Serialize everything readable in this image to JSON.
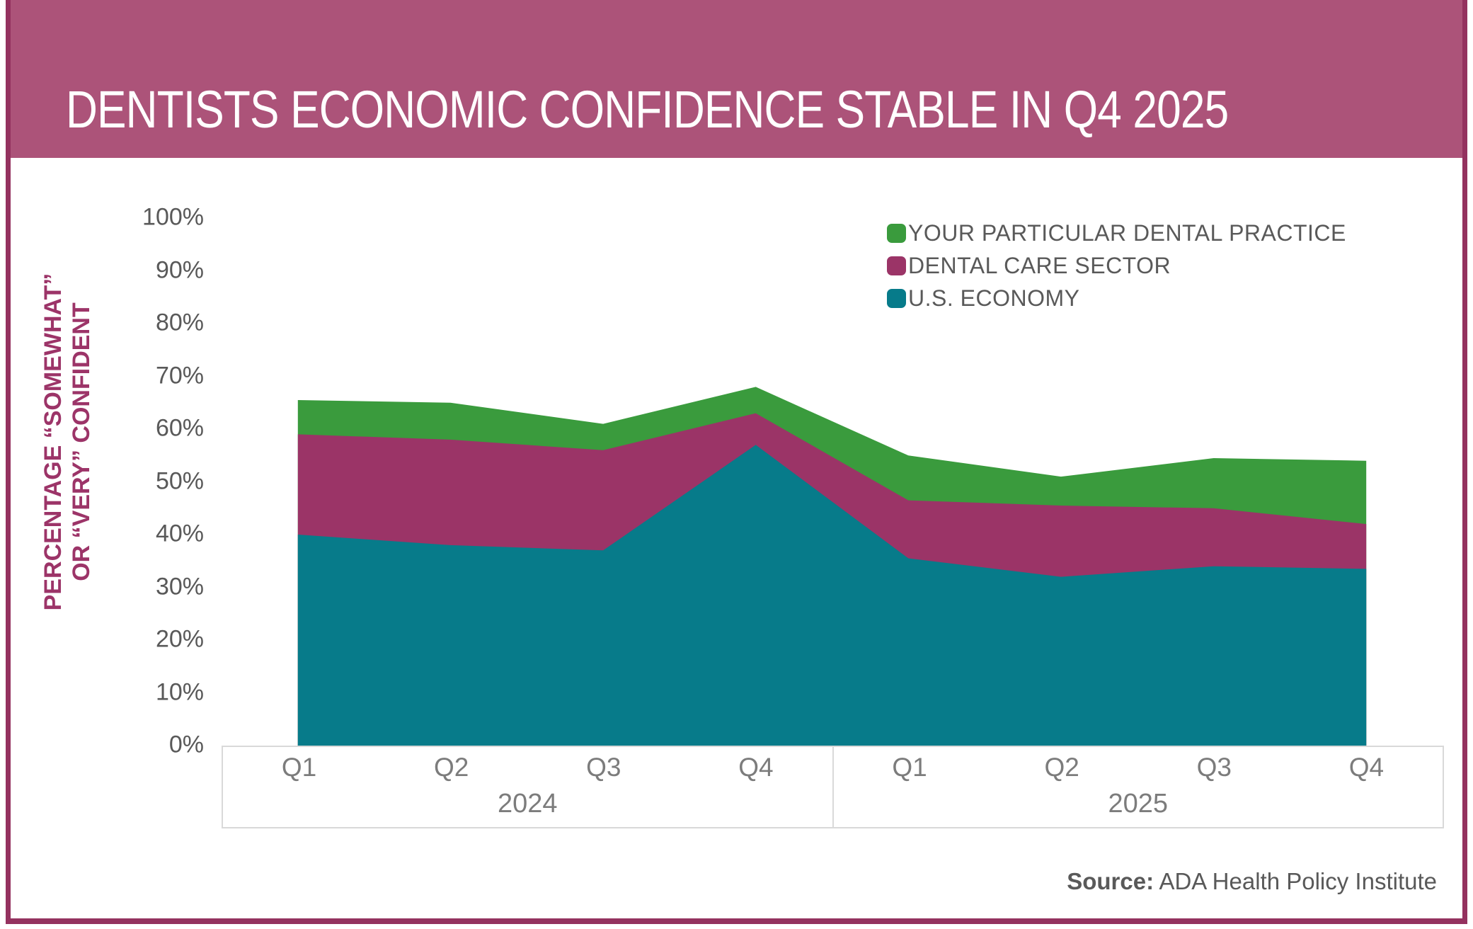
{
  "banner": {
    "title": "DENTISTS ECONOMIC CONFIDENCE STABLE IN Q4 2025",
    "bg_color": "#AC5379"
  },
  "frame": {
    "color": "#94325F"
  },
  "y_axis": {
    "title_line1": "PERCENTAGE “SOMEWHAT”",
    "title_line2": "OR “VERY” CONFIDENT",
    "color": "#9C3468"
  },
  "x_axis": {
    "years": [
      {
        "label": "2024",
        "quarters": [
          "Q1",
          "Q2",
          "Q3",
          "Q4"
        ]
      },
      {
        "label": "2025",
        "quarters": [
          "Q1",
          "Q2",
          "Q3",
          "Q4"
        ]
      }
    ]
  },
  "source": {
    "label": "Source:",
    "text": "ADA Health Policy Institute"
  },
  "chart_data": {
    "type": "area",
    "mode": "overlapping",
    "title": "DENTISTS ECONOMIC CONFIDENCE STABLE IN Q4 2025",
    "ylabel": "PERCENTAGE “SOMEWHAT” OR “VERY” CONFIDENT",
    "xlabel": "",
    "categories": [
      "Q1 2024",
      "Q2 2024",
      "Q3 2024",
      "Q4 2024",
      "Q1 2025",
      "Q2 2025",
      "Q3 2025",
      "Q4 2025"
    ],
    "series": [
      {
        "name": "YOUR PARTICULAR DENTAL PRACTICE",
        "color": "#3A9B3D",
        "values": [
          65.5,
          65,
          61,
          68,
          55,
          51,
          54.5,
          54
        ]
      },
      {
        "name": "DENTAL CARE SECTOR",
        "color": "#9B3467",
        "values": [
          59,
          58,
          56,
          63,
          46.5,
          45.5,
          45,
          42
        ]
      },
      {
        "name": "U.S. ECONOMY",
        "color": "#077B8A",
        "values": [
          40,
          38,
          37,
          57,
          35.5,
          32,
          34,
          33.5
        ]
      }
    ],
    "ylim": [
      0,
      100
    ],
    "y_tick_step": 10,
    "y_tick_labels": [
      "0%",
      "10%",
      "20%",
      "30%",
      "40%",
      "50%",
      "60%",
      "70%",
      "80%",
      "90%",
      "100%"
    ],
    "legend_position": "top-right",
    "grid": false
  }
}
